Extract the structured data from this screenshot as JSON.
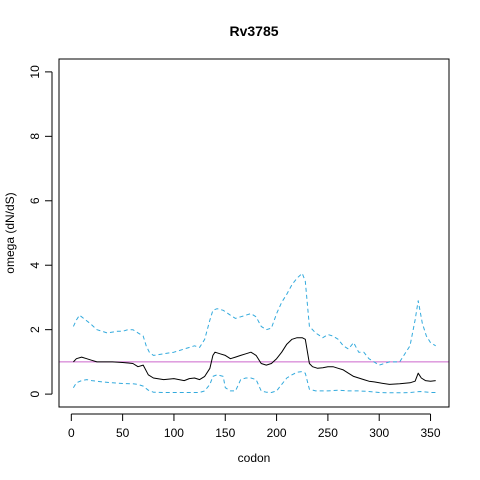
{
  "chart_data": {
    "type": "line",
    "title": "Rv3785",
    "xlabel": "codon",
    "ylabel": "omega (dN/dS)",
    "xlim": [
      -12,
      368
    ],
    "ylim": [
      -0.4,
      10.4
    ],
    "xticks": [
      0,
      50,
      100,
      150,
      200,
      250,
      300,
      350
    ],
    "yticks": [
      0,
      2,
      4,
      6,
      8,
      10
    ],
    "xtick_labels": [
      "0",
      "50",
      "100",
      "150",
      "200",
      "250",
      "300",
      "350"
    ],
    "ytick_labels": [
      "0",
      "2",
      "4",
      "6",
      "8",
      "10"
    ],
    "reference_line": {
      "y": 1,
      "color": "#cc66cc"
    },
    "grid": false,
    "series": [
      {
        "role": "estimate",
        "style": "solid",
        "color": "#000000",
        "x": [
          2,
          5,
          10,
          15,
          20,
          25,
          30,
          40,
          50,
          60,
          65,
          70,
          75,
          80,
          90,
          100,
          110,
          115,
          120,
          125,
          130,
          135,
          138,
          140,
          145,
          150,
          155,
          160,
          165,
          170,
          175,
          180,
          185,
          190,
          195,
          200,
          205,
          210,
          215,
          220,
          225,
          228,
          232,
          235,
          240,
          245,
          250,
          255,
          260,
          265,
          270,
          275,
          280,
          285,
          290,
          295,
          300,
          310,
          320,
          330,
          335,
          338,
          341,
          345,
          350,
          355
        ],
        "y": [
          1.0,
          1.1,
          1.15,
          1.1,
          1.05,
          1.0,
          1.0,
          1.0,
          0.98,
          0.95,
          0.85,
          0.9,
          0.6,
          0.5,
          0.45,
          0.48,
          0.42,
          0.48,
          0.5,
          0.45,
          0.55,
          0.8,
          1.2,
          1.3,
          1.25,
          1.2,
          1.1,
          1.15,
          1.2,
          1.25,
          1.3,
          1.2,
          0.95,
          0.9,
          0.95,
          1.1,
          1.3,
          1.55,
          1.7,
          1.75,
          1.75,
          1.7,
          0.95,
          0.85,
          0.8,
          0.82,
          0.85,
          0.85,
          0.8,
          0.75,
          0.65,
          0.55,
          0.5,
          0.45,
          0.4,
          0.38,
          0.35,
          0.3,
          0.32,
          0.35,
          0.4,
          0.65,
          0.5,
          0.42,
          0.4,
          0.42
        ]
      },
      {
        "role": "upper bound",
        "style": "dashed",
        "color": "#33aadd",
        "x": [
          2,
          5,
          8,
          12,
          18,
          25,
          35,
          45,
          50,
          55,
          60,
          65,
          70,
          73,
          76,
          80,
          90,
          100,
          110,
          120,
          125,
          130,
          135,
          138,
          142,
          148,
          155,
          160,
          165,
          170,
          175,
          180,
          185,
          190,
          195,
          200,
          205,
          210,
          215,
          220,
          225,
          228,
          232,
          238,
          245,
          250,
          255,
          260,
          265,
          270,
          275,
          280,
          285,
          290,
          300,
          310,
          320,
          330,
          335,
          338,
          342,
          346,
          350,
          355
        ],
        "y": [
          2.1,
          2.3,
          2.45,
          2.35,
          2.2,
          2.0,
          1.9,
          1.95,
          1.95,
          2.0,
          2.0,
          1.9,
          1.8,
          1.5,
          1.3,
          1.2,
          1.25,
          1.3,
          1.4,
          1.5,
          1.45,
          1.7,
          2.3,
          2.6,
          2.65,
          2.6,
          2.45,
          2.35,
          2.4,
          2.45,
          2.5,
          2.4,
          2.1,
          2.0,
          2.05,
          2.5,
          2.85,
          3.1,
          3.4,
          3.6,
          3.75,
          3.5,
          2.1,
          1.9,
          1.75,
          1.85,
          1.8,
          1.7,
          1.5,
          1.4,
          1.6,
          1.3,
          1.3,
          1.1,
          0.9,
          1.0,
          1.0,
          1.5,
          2.3,
          2.9,
          2.2,
          1.8,
          1.6,
          1.5
        ]
      },
      {
        "role": "lower bound",
        "style": "dashed",
        "color": "#33aadd",
        "x": [
          2,
          5,
          10,
          15,
          20,
          30,
          40,
          50,
          60,
          65,
          70,
          75,
          80,
          90,
          100,
          110,
          120,
          125,
          130,
          135,
          138,
          142,
          148,
          150,
          155,
          160,
          165,
          170,
          175,
          180,
          185,
          190,
          195,
          200,
          205,
          210,
          215,
          220,
          225,
          228,
          232,
          238,
          245,
          250,
          260,
          270,
          280,
          290,
          300,
          310,
          320,
          330,
          340,
          350,
          355
        ],
        "y": [
          0.2,
          0.35,
          0.42,
          0.45,
          0.42,
          0.38,
          0.35,
          0.33,
          0.32,
          0.3,
          0.25,
          0.12,
          0.06,
          0.05,
          0.05,
          0.05,
          0.05,
          0.05,
          0.1,
          0.3,
          0.55,
          0.6,
          0.55,
          0.2,
          0.1,
          0.1,
          0.45,
          0.5,
          0.5,
          0.45,
          0.1,
          0.06,
          0.05,
          0.1,
          0.3,
          0.5,
          0.6,
          0.68,
          0.7,
          0.65,
          0.15,
          0.1,
          0.1,
          0.1,
          0.12,
          0.1,
          0.1,
          0.08,
          0.05,
          0.04,
          0.04,
          0.05,
          0.08,
          0.05,
          0.05
        ]
      }
    ]
  }
}
